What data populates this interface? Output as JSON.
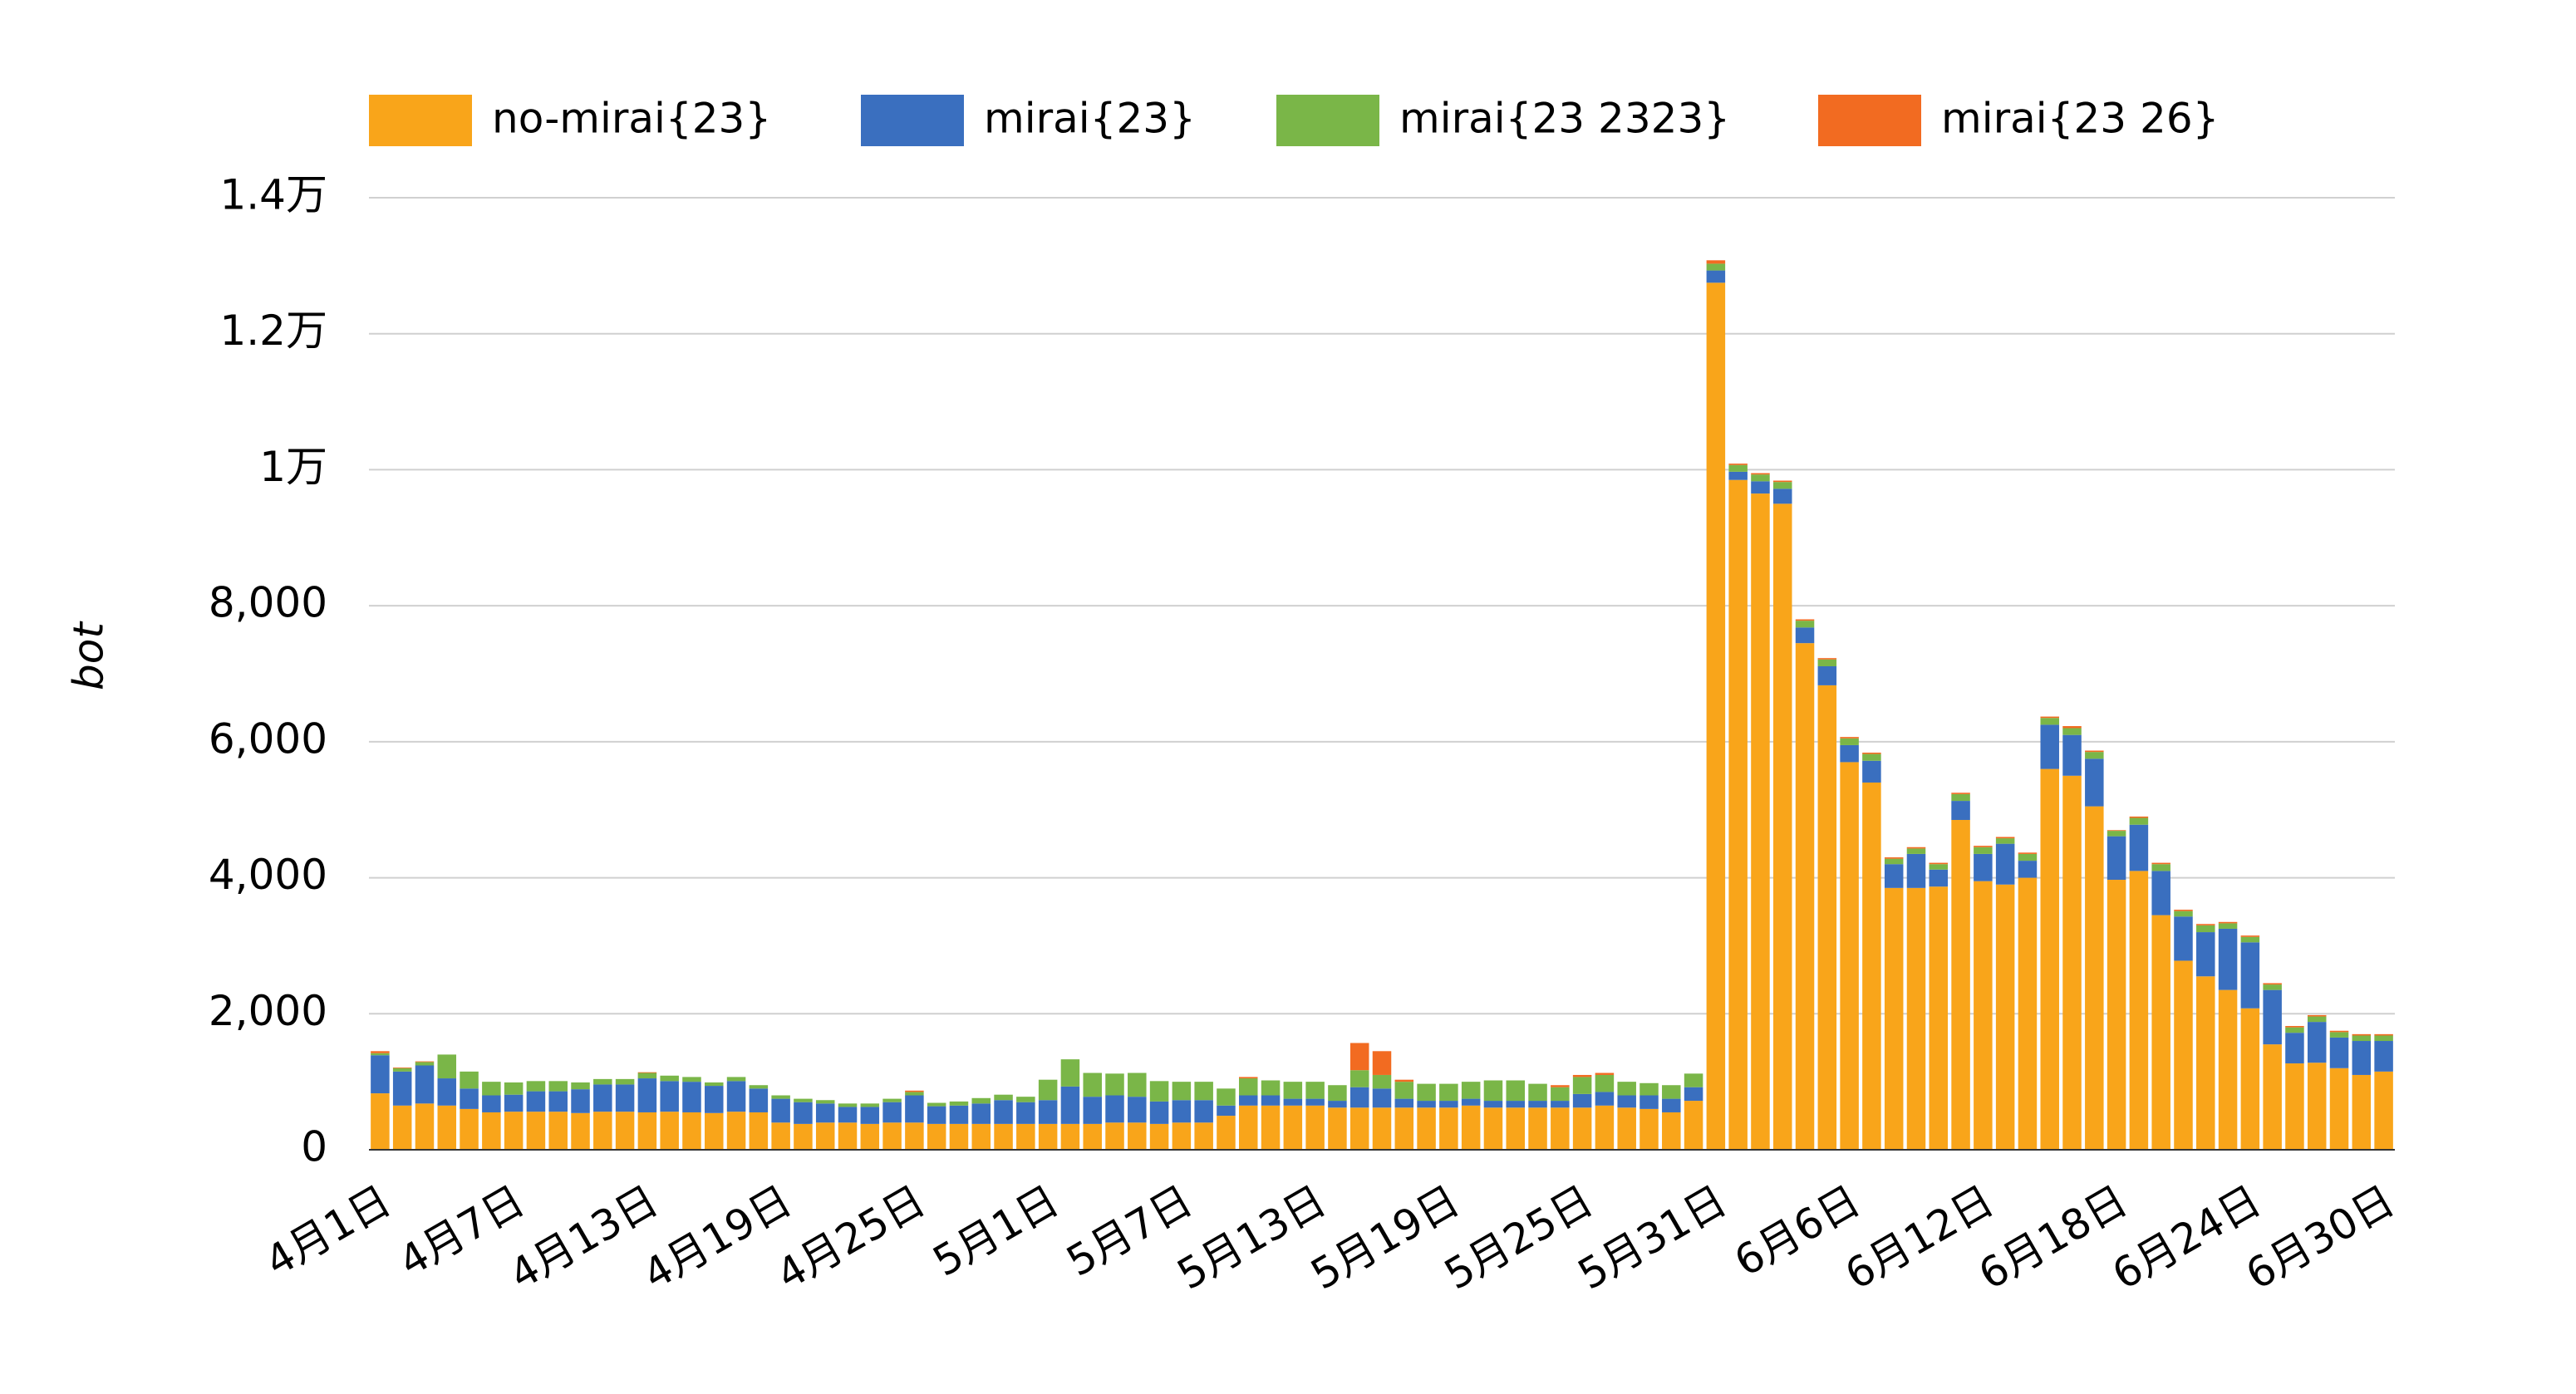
{
  "chart_data": {
    "type": "stacked_bar",
    "y_label": "bot",
    "categories": [
      "4月1日",
      null,
      null,
      null,
      null,
      null,
      "4月7日",
      null,
      null,
      null,
      null,
      null,
      "4月13日",
      null,
      null,
      null,
      null,
      null,
      "4月19日",
      null,
      null,
      null,
      null,
      null,
      "4月25日",
      null,
      null,
      null,
      null,
      null,
      "5月1日",
      null,
      null,
      null,
      null,
      null,
      "5月7日",
      null,
      null,
      null,
      null,
      null,
      "5月13日",
      null,
      null,
      null,
      null,
      null,
      "5月19日",
      null,
      null,
      null,
      null,
      null,
      "5月25日",
      null,
      null,
      null,
      null,
      null,
      "5月31日",
      null,
      null,
      null,
      null,
      null,
      "6月6日",
      null,
      null,
      null,
      null,
      null,
      "6月12日",
      null,
      null,
      null,
      null,
      null,
      "6月18日",
      null,
      null,
      null,
      null,
      null,
      "6月24日",
      null,
      null,
      null,
      null,
      null,
      "6月30日"
    ],
    "series": [
      {
        "name": "no-mirai{23}",
        "color": "#f9a51a",
        "values": [
          830,
          650,
          680,
          650,
          600,
          550,
          560,
          560,
          560,
          540,
          560,
          560,
          550,
          560,
          550,
          540,
          560,
          550,
          400,
          380,
          400,
          400,
          380,
          400,
          400,
          380,
          380,
          380,
          380,
          380,
          380,
          380,
          380,
          400,
          400,
          380,
          400,
          400,
          500,
          650,
          650,
          650,
          650,
          620,
          620,
          620,
          620,
          620,
          620,
          650,
          620,
          620,
          620,
          620,
          620,
          650,
          620,
          600,
          550,
          720,
          12750,
          9850,
          9650,
          9500,
          7450,
          6830,
          5700,
          5400,
          3850,
          3850,
          3870,
          4850,
          3950,
          3900,
          4000,
          5600,
          5500,
          5050,
          3970,
          4100,
          3450,
          2780,
          2550,
          2350,
          2080,
          1550,
          1270,
          1280,
          1200,
          1100,
          1150
        ]
      },
      {
        "name": "mirai{23}",
        "color": "#3a6fbf",
        "values": [
          560,
          500,
          560,
          400,
          300,
          250,
          250,
          300,
          300,
          350,
          400,
          400,
          500,
          450,
          450,
          400,
          450,
          350,
          350,
          320,
          280,
          230,
          250,
          300,
          400,
          260,
          270,
          300,
          350,
          320,
          350,
          550,
          400,
          400,
          380,
          330,
          330,
          330,
          150,
          150,
          150,
          100,
          100,
          100,
          300,
          280,
          130,
          100,
          100,
          100,
          100,
          100,
          100,
          100,
          200,
          200,
          180,
          200,
          200,
          200,
          180,
          120,
          180,
          220,
          230,
          280,
          250,
          320,
          350,
          500,
          250,
          280,
          400,
          600,
          250,
          650,
          600,
          700,
          640,
          680,
          650,
          650,
          650,
          900,
          970,
          800,
          450,
          600,
          450,
          500,
          450
        ]
      },
      {
        "name": "mirai{23 2323}",
        "color": "#7ab648",
        "values": [
          30,
          50,
          50,
          350,
          250,
          200,
          180,
          150,
          150,
          100,
          80,
          80,
          80,
          80,
          70,
          50,
          60,
          50,
          50,
          50,
          50,
          50,
          50,
          50,
          50,
          50,
          60,
          80,
          80,
          80,
          300,
          400,
          350,
          320,
          350,
          300,
          270,
          270,
          250,
          250,
          220,
          250,
          250,
          230,
          250,
          200,
          250,
          250,
          250,
          250,
          300,
          300,
          250,
          200,
          250,
          250,
          200,
          180,
          200,
          200,
          100,
          100,
          100,
          100,
          100,
          100,
          100,
          100,
          80,
          80,
          80,
          100,
          100,
          80,
          100,
          100,
          100,
          100,
          80,
          100,
          100,
          80,
          100,
          80,
          80,
          80,
          80,
          80,
          80,
          80,
          80
        ]
      },
      {
        "name": "mirai{23 26}",
        "color": "#f26b21",
        "values": [
          30,
          10,
          10,
          0,
          0,
          0,
          0,
          0,
          0,
          0,
          0,
          0,
          10,
          0,
          0,
          0,
          0,
          0,
          0,
          0,
          0,
          0,
          0,
          0,
          20,
          0,
          0,
          0,
          0,
          0,
          0,
          0,
          0,
          0,
          0,
          0,
          0,
          0,
          0,
          20,
          0,
          0,
          0,
          0,
          400,
          350,
          30,
          0,
          0,
          0,
          0,
          0,
          0,
          30,
          30,
          30,
          0,
          0,
          0,
          0,
          50,
          20,
          20,
          20,
          20,
          20,
          20,
          20,
          20,
          20,
          20,
          20,
          20,
          20,
          20,
          20,
          30,
          20,
          10,
          20,
          20,
          20,
          20,
          20,
          20,
          20,
          20,
          20,
          20,
          20,
          20
        ]
      }
    ],
    "ylim": [
      0,
      14000
    ],
    "yticks": [
      0,
      {
        "value": 2000,
        "label": "2,000"
      },
      {
        "value": 4000,
        "label": "4,000"
      },
      {
        "value": 6000,
        "label": "6,000"
      },
      {
        "value": 8000,
        "label": "8,000"
      },
      {
        "value": 10000,
        "label": "1万"
      },
      {
        "value": 12000,
        "label": "1.2万"
      },
      {
        "value": 14000,
        "label": "1.4万"
      }
    ],
    "grid": true,
    "legend": "top"
  }
}
